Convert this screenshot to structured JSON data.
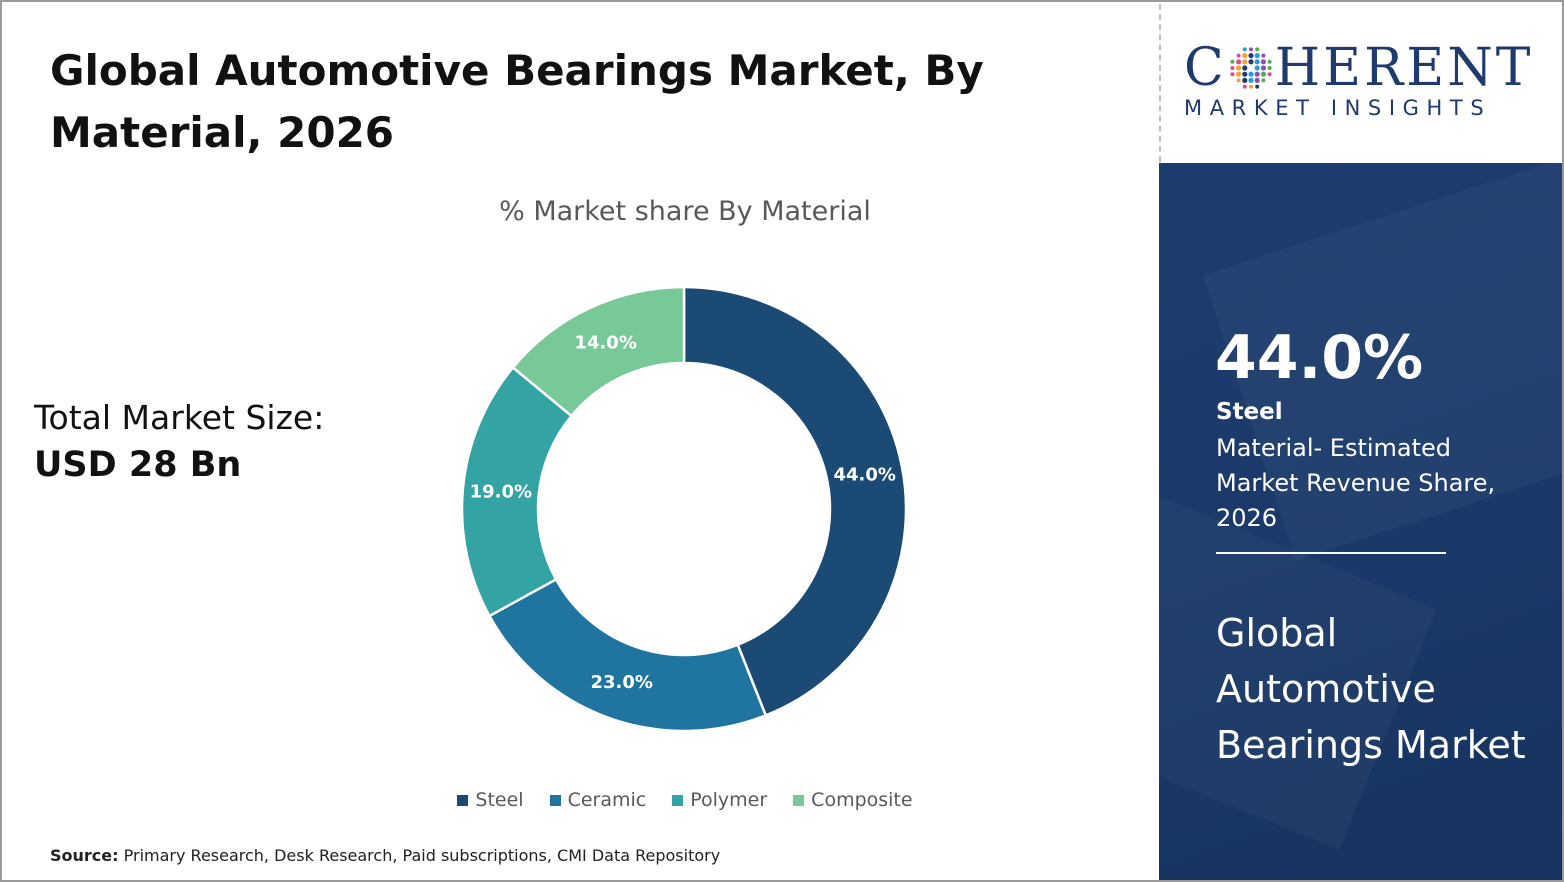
{
  "header": {
    "title": "Global Automotive Bearings Market, By Material, 2026"
  },
  "market_size": {
    "label": "Total Market Size:",
    "value": "USD 28 Bn"
  },
  "source": {
    "label": "Source:",
    "text": "Primary Research, Desk Research, Paid subscriptions, CMI Data Repository"
  },
  "logo": {
    "word_left": "C",
    "word_right": "HERENT",
    "tagline": "MARKET INSIGHTS"
  },
  "side_panel": {
    "percent": "44.0%",
    "material": "Steel",
    "description": "Material- Estimated Market Revenue Share, 2026",
    "market_name": "Global Automotive Bearings Market"
  },
  "colors": {
    "steel": "#1b4a75",
    "ceramic": "#1f74a0",
    "polymer": "#33a3a3",
    "composite": "#78c998",
    "panel": "#1b3a6a",
    "brand": "#1f3a6e"
  },
  "chart_data": {
    "type": "pie",
    "title": "% Market share By Material",
    "categories": [
      "Steel",
      "Ceramic",
      "Polymer",
      "Composite"
    ],
    "values": [
      44.0,
      23.0,
      19.0,
      14.0
    ],
    "labels": [
      "44.0%",
      "23.0%",
      "19.0%",
      "14.0%"
    ],
    "colors": [
      "#1b4a75",
      "#1f74a0",
      "#33a3a3",
      "#78c998"
    ],
    "donut": true,
    "legend": "bottom"
  }
}
